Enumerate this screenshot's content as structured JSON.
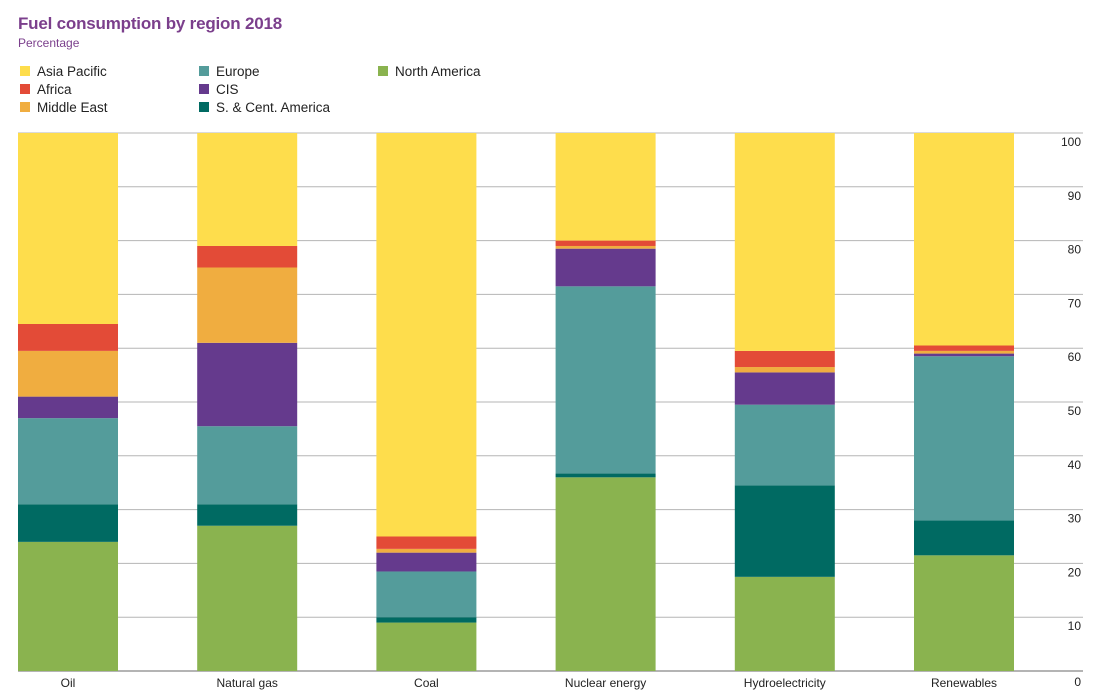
{
  "chart_data": {
    "type": "bar",
    "stacked": true,
    "title": "Fuel consumption by region 2018",
    "subtitle": "Percentage",
    "xlabel": "",
    "ylabel": "",
    "ylim": [
      0,
      100
    ],
    "yticks": [
      0,
      10,
      20,
      30,
      40,
      50,
      60,
      70,
      80,
      90,
      100
    ],
    "yaxis_position": "right",
    "grid": true,
    "legend_position": "top-left",
    "categories": [
      "Oil",
      "Natural gas",
      "Coal",
      "Nuclear energy",
      "Hydroelectricity",
      "Renewables"
    ],
    "series": [
      {
        "name": "North America",
        "color": "#8ab34f",
        "values": [
          24,
          27,
          9,
          36,
          17.5,
          21.5
        ]
      },
      {
        "name": "S. & Cent. America",
        "color": "#006a62",
        "values": [
          7,
          4,
          1,
          0.7,
          17,
          6.5
        ]
      },
      {
        "name": "Europe",
        "color": "#549c9b",
        "values": [
          16,
          14.5,
          8.5,
          34.8,
          15,
          30.5
        ]
      },
      {
        "name": "CIS",
        "color": "#653a8d",
        "values": [
          4,
          15.5,
          3.5,
          7,
          6,
          0.5
        ]
      },
      {
        "name": "Middle East",
        "color": "#f0ad40",
        "values": [
          8.5,
          14,
          0.7,
          0.5,
          1,
          0.5
        ]
      },
      {
        "name": "Africa",
        "color": "#e34b37",
        "values": [
          5,
          4,
          2.3,
          1,
          3,
          1
        ]
      },
      {
        "name": "Asia Pacific",
        "color": "#fedd4c",
        "values": [
          35.5,
          21,
          75,
          20,
          40.5,
          39.5
        ]
      }
    ]
  },
  "legend": {
    "columns": [
      [
        "Asia Pacific",
        "Africa",
        "Middle East"
      ],
      [
        "Europe",
        "CIS",
        "S. & Cent. America"
      ],
      [
        "North America"
      ]
    ]
  }
}
